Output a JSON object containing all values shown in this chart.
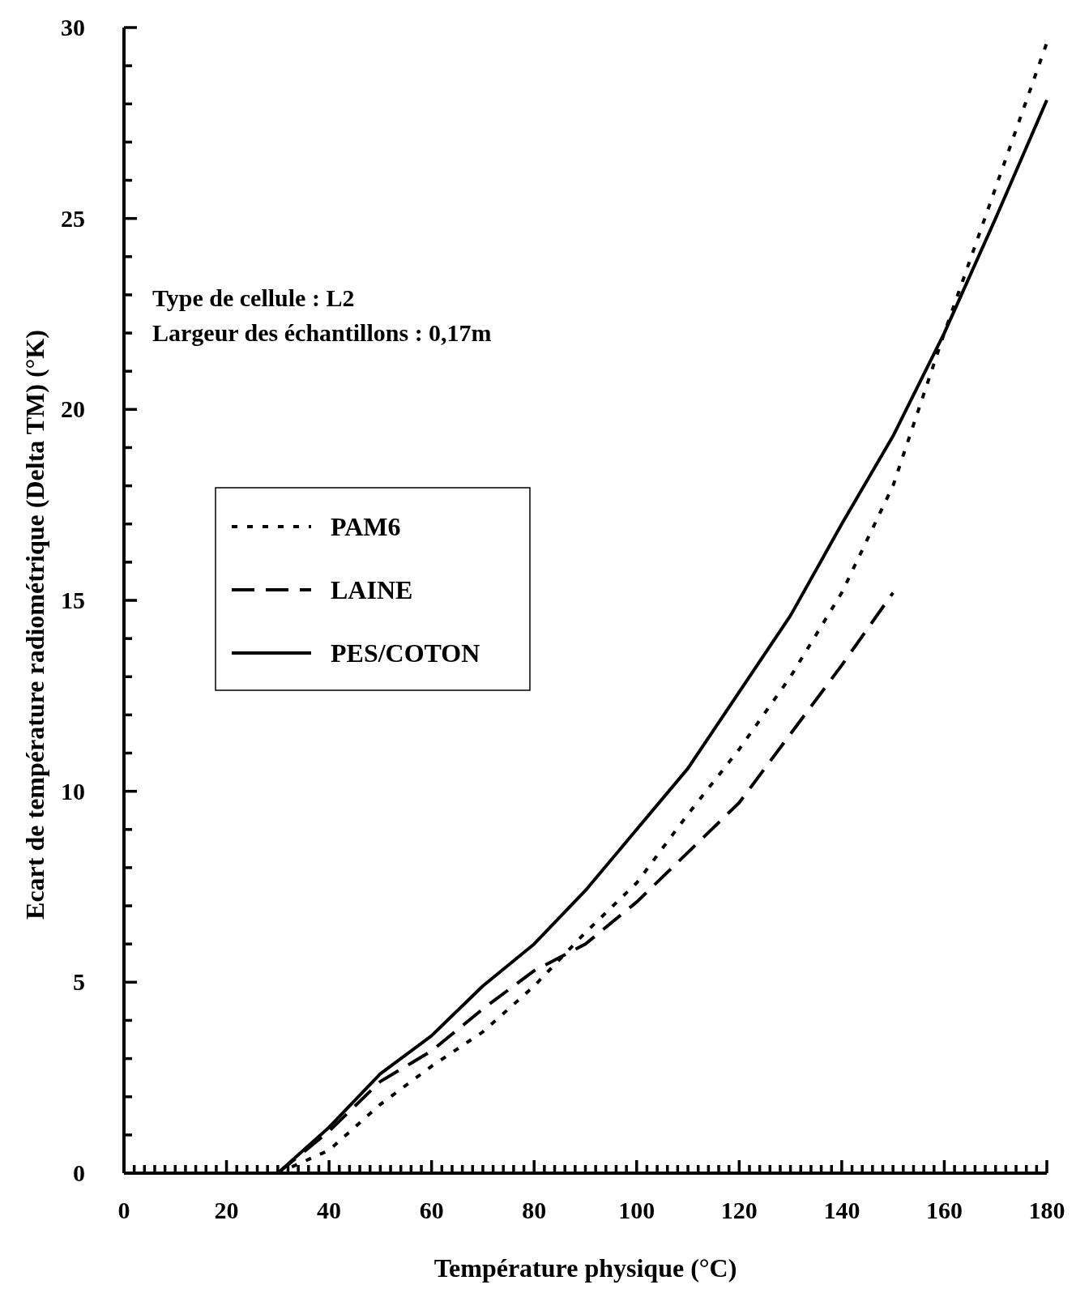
{
  "chart_data": {
    "type": "line",
    "xlabel": "Température physique (°C)",
    "ylabel": "Ecart de température radiométrique (Delta TM) (°K)",
    "annotations": [
      "Type de cellule : L2",
      "Largeur des échantillons : 0,17m"
    ],
    "x": [
      30,
      40,
      50,
      60,
      70,
      80,
      90,
      100,
      110,
      120,
      130,
      140,
      150,
      160,
      170,
      180
    ],
    "series": [
      {
        "name": "PAM6",
        "color": "#000000",
        "line_style": "dotted",
        "values": [
          0,
          0.6,
          1.8,
          2.8,
          3.7,
          4.9,
          6.3,
          7.6,
          9.4,
          11.1,
          13.0,
          15.2,
          18.0,
          22.0,
          25.8,
          29.6
        ]
      },
      {
        "name": "LAINE",
        "color": "#000000",
        "line_style": "dashed",
        "values": [
          0,
          1.1,
          2.4,
          3.2,
          4.3,
          5.3,
          6.0,
          7.1,
          8.4,
          9.7,
          11.5,
          13.3,
          15.2,
          null,
          null,
          null
        ]
      },
      {
        "name": "PES/COTON",
        "color": "#000000",
        "line_style": "solid",
        "values": [
          0,
          1.2,
          2.6,
          3.6,
          4.9,
          6.0,
          7.4,
          9.0,
          10.6,
          12.6,
          14.6,
          17.0,
          19.3,
          22.0,
          25.0,
          28.1
        ]
      }
    ],
    "xlim": [
      0,
      180
    ],
    "ylim": [
      0,
      30
    ],
    "xticks": [
      0,
      {
        "value": 2,
        "label": null
      },
      {
        "value": 4,
        "label": null
      },
      {
        "value": 6,
        "label": null
      },
      {
        "value": 8,
        "label": null
      },
      {
        "value": 10,
        "label": null
      },
      {
        "value": 12,
        "label": null
      },
      {
        "value": 14,
        "label": null
      },
      {
        "value": 16,
        "label": null
      },
      {
        "value": 18,
        "label": null
      },
      20,
      {
        "value": 22,
        "label": null
      },
      {
        "value": 24,
        "label": null
      },
      {
        "value": 26,
        "label": null
      },
      {
        "value": 28,
        "label": null
      },
      {
        "value": 30,
        "label": null
      },
      {
        "value": 32,
        "label": null
      },
      {
        "value": 34,
        "label": null
      },
      {
        "value": 36,
        "label": null
      },
      {
        "value": 38,
        "label": null
      },
      40,
      {
        "value": 42,
        "label": null
      },
      {
        "value": 44,
        "label": null
      },
      {
        "value": 46,
        "label": null
      },
      {
        "value": 48,
        "label": null
      },
      {
        "value": 50,
        "label": null
      },
      {
        "value": 52,
        "label": null
      },
      {
        "value": 54,
        "label": null
      },
      {
        "value": 56,
        "label": null
      },
      {
        "value": 58,
        "label": null
      },
      60,
      {
        "value": 62,
        "label": null
      },
      {
        "value": 64,
        "label": null
      },
      {
        "value": 66,
        "label": null
      },
      {
        "value": 68,
        "label": null
      },
      {
        "value": 70,
        "label": null
      },
      {
        "value": 72,
        "label": null
      },
      {
        "value": 74,
        "label": null
      },
      {
        "value": 76,
        "label": null
      },
      {
        "value": 78,
        "label": null
      },
      80,
      {
        "value": 82,
        "label": null
      },
      {
        "value": 84,
        "label": null
      },
      {
        "value": 86,
        "label": null
      },
      {
        "value": 88,
        "label": null
      },
      {
        "value": 90,
        "label": null
      },
      {
        "value": 92,
        "label": null
      },
      {
        "value": 94,
        "label": null
      },
      {
        "value": 96,
        "label": null
      },
      {
        "value": 98,
        "label": null
      },
      100,
      {
        "value": 102,
        "label": null
      },
      {
        "value": 104,
        "label": null
      },
      {
        "value": 106,
        "label": null
      },
      {
        "value": 108,
        "label": null
      },
      {
        "value": 110,
        "label": null
      },
      {
        "value": 112,
        "label": null
      },
      {
        "value": 114,
        "label": null
      },
      {
        "value": 116,
        "label": null
      },
      {
        "value": 118,
        "label": null
      },
      120,
      {
        "value": 122,
        "label": null
      },
      {
        "value": 124,
        "label": null
      },
      {
        "value": 126,
        "label": null
      },
      {
        "value": 128,
        "label": null
      },
      {
        "value": 130,
        "label": null
      },
      {
        "value": 132,
        "label": null
      },
      {
        "value": 134,
        "label": null
      },
      {
        "value": 136,
        "label": null
      },
      {
        "value": 138,
        "label": null
      },
      140,
      {
        "value": 142,
        "label": null
      },
      {
        "value": 144,
        "label": null
      },
      {
        "value": 146,
        "label": null
      },
      {
        "value": 148,
        "label": null
      },
      {
        "value": 150,
        "label": null
      },
      {
        "value": 152,
        "label": null
      },
      {
        "value": 154,
        "label": null
      },
      {
        "value": 156,
        "label": null
      },
      {
        "value": 158,
        "label": null
      },
      160,
      {
        "value": 162,
        "label": null
      },
      {
        "value": 164,
        "label": null
      },
      {
        "value": 166,
        "label": null
      },
      {
        "value": 168,
        "label": null
      },
      {
        "value": 170,
        "label": null
      },
      {
        "value": 172,
        "label": null
      },
      {
        "value": 174,
        "label": null
      },
      {
        "value": 176,
        "label": null
      },
      {
        "value": 178,
        "label": null
      },
      180
    ],
    "yticks": [
      0,
      {
        "value": 1,
        "label": null
      },
      {
        "value": 2,
        "label": null
      },
      {
        "value": 3,
        "label": null
      },
      {
        "value": 4,
        "label": null
      },
      5,
      {
        "value": 6,
        "label": null
      },
      {
        "value": 7,
        "label": null
      },
      {
        "value": 8,
        "label": null
      },
      {
        "value": 9,
        "label": null
      },
      10,
      {
        "value": 11,
        "label": null
      },
      {
        "value": 12,
        "label": null
      },
      {
        "value": 13,
        "label": null
      },
      {
        "value": 14,
        "label": null
      },
      15,
      {
        "value": 16,
        "label": null
      },
      {
        "value": 17,
        "label": null
      },
      {
        "value": 18,
        "label": null
      },
      {
        "value": 19,
        "label": null
      },
      20,
      {
        "value": 21,
        "label": null
      },
      {
        "value": 22,
        "label": null
      },
      {
        "value": 23,
        "label": null
      },
      {
        "value": 24,
        "label": null
      },
      25,
      {
        "value": 26,
        "label": null
      },
      {
        "value": 27,
        "label": null
      },
      {
        "value": 28,
        "label": null
      },
      {
        "value": 29,
        "label": null
      },
      30
    ],
    "grid": false,
    "legend": "left"
  }
}
